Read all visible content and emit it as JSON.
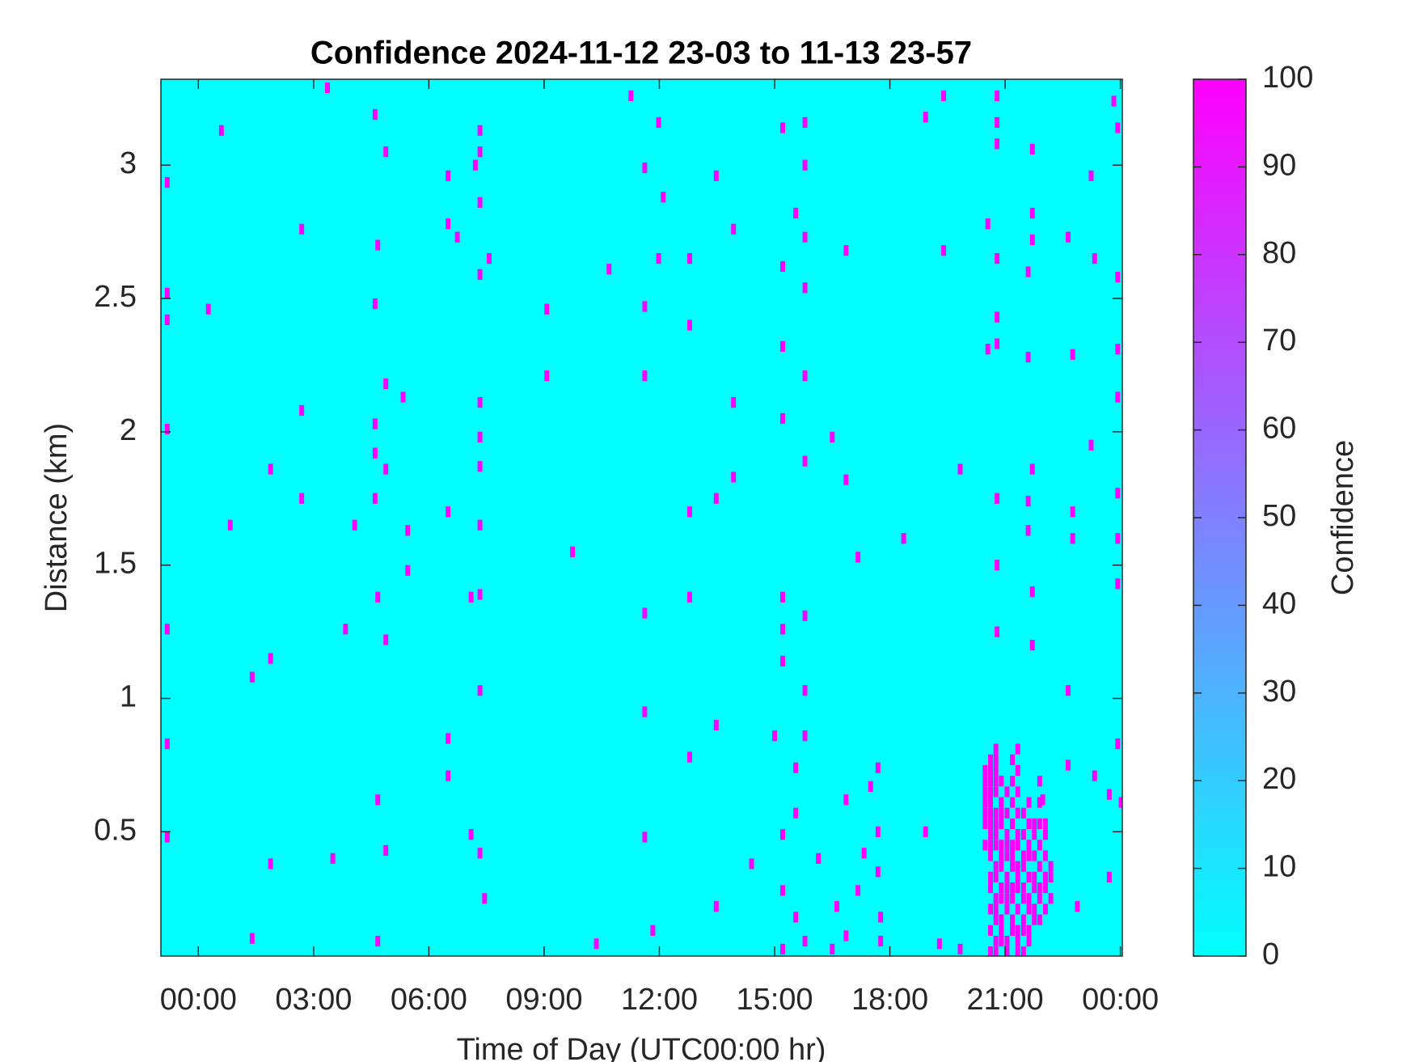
{
  "chart_data": {
    "type": "heatmap",
    "title": "Confidence 2024-11-12 23-03 to 11-13 23-57",
    "x_label": "Time of Day (UTC00:00 hr)",
    "y_label": "Distance (km)",
    "colorbar_label": "Confidence",
    "colormap": "cool",
    "fill_value": 0,
    "xlim": [
      -0.975,
      24.05
    ],
    "ylim": [
      0.034,
      3.322
    ],
    "clim": [
      0,
      100
    ],
    "xticks": [
      {
        "value": 0,
        "label": "00:00"
      },
      {
        "value": 3,
        "label": "03:00"
      },
      {
        "value": 6,
        "label": "06:00"
      },
      {
        "value": 9,
        "label": "09:00"
      },
      {
        "value": 12,
        "label": "12:00"
      },
      {
        "value": 15,
        "label": "15:00"
      },
      {
        "value": 18,
        "label": "18:00"
      },
      {
        "value": 21,
        "label": "21:00"
      },
      {
        "value": 24,
        "label": "00:00"
      }
    ],
    "yticks": [
      0.5,
      1,
      1.5,
      2,
      2.5,
      3
    ],
    "cticks": [
      0,
      10,
      20,
      30,
      40,
      50,
      60,
      70,
      80,
      90,
      100
    ],
    "cells": [
      [
        -0.81,
        2.935,
        100
      ],
      [
        -0.81,
        2.52,
        100
      ],
      [
        -0.81,
        2.42,
        100
      ],
      [
        -0.81,
        2.01,
        100
      ],
      [
        -0.81,
        1.26,
        100
      ],
      [
        -0.81,
        0.83,
        100
      ],
      [
        -0.81,
        0.48,
        100
      ],
      [
        0.26,
        2.46,
        100
      ],
      [
        0.6,
        3.13,
        100
      ],
      [
        0.83,
        1.65,
        100
      ],
      [
        1.4,
        1.08,
        100
      ],
      [
        1.4,
        0.1,
        100
      ],
      [
        1.88,
        1.86,
        100
      ],
      [
        1.88,
        1.15,
        100
      ],
      [
        1.88,
        0.38,
        100
      ],
      [
        2.69,
        2.76,
        100
      ],
      [
        2.69,
        2.08,
        100
      ],
      [
        2.69,
        1.75,
        100
      ],
      [
        3.36,
        3.29,
        100
      ],
      [
        3.5,
        0.4,
        100
      ],
      [
        3.83,
        1.26,
        100
      ],
      [
        4.07,
        1.65,
        100
      ],
      [
        4.6,
        3.19,
        100
      ],
      [
        4.6,
        2.48,
        100
      ],
      [
        4.6,
        2.03,
        100
      ],
      [
        4.6,
        1.92,
        100
      ],
      [
        4.6,
        1.75,
        100
      ],
      [
        4.67,
        2.7,
        100
      ],
      [
        4.67,
        1.38,
        100
      ],
      [
        4.67,
        0.62,
        100
      ],
      [
        4.67,
        0.09,
        100
      ],
      [
        4.88,
        3.05,
        100
      ],
      [
        4.88,
        2.18,
        100
      ],
      [
        4.88,
        1.86,
        100
      ],
      [
        4.88,
        1.22,
        100
      ],
      [
        4.88,
        0.43,
        100
      ],
      [
        5.33,
        2.13,
        100
      ],
      [
        5.45,
        1.63,
        100
      ],
      [
        5.45,
        1.48,
        100
      ],
      [
        6.5,
        2.96,
        100
      ],
      [
        6.5,
        2.78,
        100
      ],
      [
        6.5,
        1.7,
        100
      ],
      [
        6.5,
        0.85,
        100
      ],
      [
        6.5,
        0.71,
        100
      ],
      [
        6.74,
        2.73,
        100
      ],
      [
        7.1,
        1.38,
        100
      ],
      [
        7.1,
        0.49,
        100
      ],
      [
        7.21,
        3.0,
        100
      ],
      [
        7.33,
        3.13,
        100
      ],
      [
        7.33,
        3.05,
        100
      ],
      [
        7.33,
        2.86,
        100
      ],
      [
        7.33,
        2.59,
        100
      ],
      [
        7.33,
        2.11,
        100
      ],
      [
        7.33,
        1.98,
        100
      ],
      [
        7.33,
        1.87,
        100
      ],
      [
        7.33,
        1.65,
        100
      ],
      [
        7.33,
        1.39,
        100
      ],
      [
        7.33,
        1.03,
        100
      ],
      [
        7.33,
        0.42,
        100
      ],
      [
        7.45,
        0.25,
        100
      ],
      [
        7.57,
        2.65,
        100
      ],
      [
        9.07,
        2.46,
        100
      ],
      [
        9.07,
        2.21,
        100
      ],
      [
        9.74,
        1.55,
        100
      ],
      [
        10.36,
        0.08,
        100
      ],
      [
        10.69,
        2.61,
        100
      ],
      [
        11.26,
        3.26,
        100
      ],
      [
        11.62,
        2.99,
        100
      ],
      [
        11.62,
        2.47,
        100
      ],
      [
        11.62,
        2.21,
        100
      ],
      [
        11.62,
        1.32,
        100
      ],
      [
        11.62,
        0.95,
        100
      ],
      [
        11.62,
        0.48,
        100
      ],
      [
        11.83,
        0.13,
        100
      ],
      [
        11.98,
        3.16,
        100
      ],
      [
        11.98,
        2.65,
        100
      ],
      [
        12.1,
        2.88,
        100
      ],
      [
        12.79,
        2.65,
        100
      ],
      [
        12.79,
        2.4,
        100
      ],
      [
        12.79,
        1.7,
        100
      ],
      [
        12.79,
        1.38,
        100
      ],
      [
        12.79,
        0.78,
        100
      ],
      [
        13.48,
        2.96,
        100
      ],
      [
        13.48,
        1.75,
        100
      ],
      [
        13.48,
        0.9,
        100
      ],
      [
        13.48,
        0.22,
        100
      ],
      [
        13.93,
        2.76,
        100
      ],
      [
        13.93,
        2.11,
        100
      ],
      [
        13.93,
        1.83,
        100
      ],
      [
        14.4,
        0.38,
        100
      ],
      [
        15.0,
        0.86,
        100
      ],
      [
        15.21,
        3.14,
        100
      ],
      [
        15.21,
        2.62,
        100
      ],
      [
        15.21,
        2.32,
        100
      ],
      [
        15.21,
        2.05,
        100
      ],
      [
        15.21,
        1.38,
        100
      ],
      [
        15.21,
        1.26,
        100
      ],
      [
        15.21,
        1.14,
        100
      ],
      [
        15.21,
        0.49,
        100
      ],
      [
        15.21,
        0.28,
        100
      ],
      [
        15.21,
        0.06,
        100
      ],
      [
        15.55,
        2.82,
        100
      ],
      [
        15.55,
        0.74,
        100
      ],
      [
        15.55,
        0.57,
        100
      ],
      [
        15.55,
        0.18,
        100
      ],
      [
        15.79,
        3.16,
        100
      ],
      [
        15.79,
        3.0,
        100
      ],
      [
        15.79,
        2.73,
        100
      ],
      [
        15.79,
        2.54,
        100
      ],
      [
        15.79,
        2.21,
        100
      ],
      [
        15.79,
        1.89,
        100
      ],
      [
        15.79,
        1.31,
        100
      ],
      [
        15.79,
        1.03,
        100
      ],
      [
        15.79,
        0.86,
        100
      ],
      [
        15.79,
        0.09,
        100
      ],
      [
        16.14,
        0.4,
        100
      ],
      [
        16.5,
        1.98,
        100
      ],
      [
        16.5,
        0.06,
        100
      ],
      [
        16.62,
        0.22,
        100
      ],
      [
        16.86,
        2.68,
        100
      ],
      [
        16.86,
        1.82,
        100
      ],
      [
        16.86,
        0.62,
        100
      ],
      [
        16.86,
        0.11,
        100
      ],
      [
        17.17,
        1.53,
        100
      ],
      [
        17.17,
        0.28,
        100
      ],
      [
        17.33,
        0.42,
        100
      ],
      [
        17.5,
        0.67,
        100
      ],
      [
        17.69,
        0.74,
        100
      ],
      [
        17.69,
        0.5,
        100
      ],
      [
        17.69,
        0.35,
        100
      ],
      [
        17.76,
        0.18,
        100
      ],
      [
        17.76,
        0.09,
        100
      ],
      [
        18.36,
        1.6,
        100
      ],
      [
        18.93,
        3.18,
        100
      ],
      [
        18.93,
        0.5,
        100
      ],
      [
        19.29,
        0.08,
        100
      ],
      [
        19.4,
        3.26,
        100
      ],
      [
        19.4,
        2.68,
        100
      ],
      [
        19.83,
        1.86,
        100
      ],
      [
        19.83,
        0.06,
        100
      ],
      [
        20.55,
        2.78,
        100
      ],
      [
        20.55,
        2.31,
        100
      ],
      [
        20.79,
        3.26,
        100
      ],
      [
        20.79,
        3.16,
        100
      ],
      [
        20.79,
        3.08,
        100
      ],
      [
        20.79,
        2.65,
        100
      ],
      [
        20.79,
        2.43,
        100
      ],
      [
        20.79,
        2.33,
        100
      ],
      [
        20.79,
        1.75,
        100
      ],
      [
        20.79,
        1.5,
        100
      ],
      [
        20.79,
        1.25,
        100
      ],
      [
        21.6,
        2.28,
        100
      ],
      [
        21.6,
        2.6,
        100
      ],
      [
        21.6,
        1.74,
        100
      ],
      [
        21.6,
        1.63,
        100
      ],
      [
        21.71,
        3.06,
        100
      ],
      [
        21.71,
        2.82,
        100
      ],
      [
        21.71,
        2.72,
        100
      ],
      [
        21.71,
        1.86,
        100
      ],
      [
        21.71,
        1.4,
        100
      ],
      [
        21.71,
        1.2,
        100
      ],
      [
        21.98,
        0.62,
        100
      ],
      [
        22.64,
        2.73,
        100
      ],
      [
        22.64,
        1.03,
        100
      ],
      [
        22.64,
        0.75,
        100
      ],
      [
        22.76,
        2.29,
        100
      ],
      [
        22.76,
        1.7,
        100
      ],
      [
        22.76,
        1.6,
        100
      ],
      [
        22.88,
        0.22,
        100
      ],
      [
        23.24,
        2.96,
        100
      ],
      [
        23.24,
        1.95,
        100
      ],
      [
        23.33,
        2.65,
        100
      ],
      [
        23.33,
        0.71,
        100
      ],
      [
        23.71,
        0.64,
        100
      ],
      [
        23.71,
        0.33,
        100
      ],
      [
        23.83,
        3.24,
        100
      ],
      [
        23.93,
        3.14,
        100
      ],
      [
        23.93,
        2.58,
        100
      ],
      [
        23.93,
        2.31,
        100
      ],
      [
        23.93,
        2.13,
        100
      ],
      [
        23.93,
        1.77,
        100
      ],
      [
        23.93,
        1.6,
        100
      ],
      [
        23.93,
        1.43,
        100
      ],
      [
        23.93,
        0.83,
        100
      ],
      [
        24.02,
        0.61,
        100
      ],
      [
        20.48,
        0.45,
        100
      ],
      [
        20.48,
        0.53,
        100
      ],
      [
        20.48,
        0.57,
        100
      ],
      [
        20.48,
        0.61,
        100
      ],
      [
        20.48,
        0.65,
        100
      ],
      [
        20.48,
        0.69,
        100
      ],
      [
        20.48,
        0.73,
        100
      ],
      [
        20.62,
        0.05,
        100
      ],
      [
        20.62,
        0.13,
        100
      ],
      [
        20.62,
        0.21,
        100
      ],
      [
        20.62,
        0.29,
        100
      ],
      [
        20.62,
        0.33,
        100
      ],
      [
        20.62,
        0.41,
        100
      ],
      [
        20.62,
        0.45,
        100
      ],
      [
        20.62,
        0.49,
        100
      ],
      [
        20.62,
        0.53,
        100
      ],
      [
        20.62,
        0.57,
        100
      ],
      [
        20.62,
        0.61,
        100
      ],
      [
        20.62,
        0.65,
        100
      ],
      [
        20.62,
        0.69,
        100
      ],
      [
        20.62,
        0.73,
        100
      ],
      [
        20.62,
        0.77,
        100
      ],
      [
        20.76,
        0.05,
        100
      ],
      [
        20.76,
        0.09,
        100
      ],
      [
        20.76,
        0.17,
        100
      ],
      [
        20.76,
        0.21,
        100
      ],
      [
        20.76,
        0.25,
        100
      ],
      [
        20.76,
        0.33,
        100
      ],
      [
        20.76,
        0.37,
        100
      ],
      [
        20.76,
        0.45,
        100
      ],
      [
        20.76,
        0.49,
        100
      ],
      [
        20.76,
        0.53,
        100
      ],
      [
        20.76,
        0.57,
        100
      ],
      [
        20.76,
        0.65,
        100
      ],
      [
        20.76,
        0.69,
        100
      ],
      [
        20.76,
        0.73,
        100
      ],
      [
        20.76,
        0.77,
        100
      ],
      [
        20.76,
        0.81,
        100
      ],
      [
        20.9,
        0.09,
        100
      ],
      [
        20.9,
        0.13,
        100
      ],
      [
        20.9,
        0.17,
        100
      ],
      [
        20.9,
        0.25,
        100
      ],
      [
        20.9,
        0.29,
        100
      ],
      [
        20.9,
        0.37,
        100
      ],
      [
        20.9,
        0.41,
        100
      ],
      [
        20.9,
        0.45,
        100
      ],
      [
        20.9,
        0.53,
        100
      ],
      [
        20.9,
        0.57,
        100
      ],
      [
        20.9,
        0.61,
        100
      ],
      [
        20.9,
        0.69,
        100
      ],
      [
        21.05,
        0.05,
        100
      ],
      [
        21.05,
        0.09,
        100
      ],
      [
        21.05,
        0.21,
        100
      ],
      [
        21.05,
        0.25,
        100
      ],
      [
        21.05,
        0.29,
        100
      ],
      [
        21.05,
        0.33,
        100
      ],
      [
        21.05,
        0.41,
        100
      ],
      [
        21.05,
        0.45,
        100
      ],
      [
        21.05,
        0.49,
        100
      ],
      [
        21.05,
        0.57,
        100
      ],
      [
        21.05,
        0.65,
        100
      ],
      [
        21.19,
        0.13,
        100
      ],
      [
        21.19,
        0.17,
        100
      ],
      [
        21.19,
        0.25,
        100
      ],
      [
        21.19,
        0.29,
        100
      ],
      [
        21.19,
        0.37,
        100
      ],
      [
        21.19,
        0.41,
        100
      ],
      [
        21.19,
        0.45,
        100
      ],
      [
        21.19,
        0.53,
        100
      ],
      [
        21.19,
        0.61,
        100
      ],
      [
        21.19,
        0.69,
        100
      ],
      [
        21.19,
        0.77,
        100
      ],
      [
        21.33,
        0.05,
        100
      ],
      [
        21.33,
        0.09,
        100
      ],
      [
        21.33,
        0.13,
        100
      ],
      [
        21.33,
        0.21,
        100
      ],
      [
        21.33,
        0.29,
        100
      ],
      [
        21.33,
        0.33,
        100
      ],
      [
        21.33,
        0.37,
        100
      ],
      [
        21.33,
        0.45,
        100
      ],
      [
        21.33,
        0.49,
        100
      ],
      [
        21.33,
        0.57,
        100
      ],
      [
        21.33,
        0.65,
        100
      ],
      [
        21.33,
        0.73,
        100
      ],
      [
        21.33,
        0.81,
        100
      ],
      [
        21.48,
        0.05,
        100
      ],
      [
        21.48,
        0.13,
        100
      ],
      [
        21.48,
        0.17,
        100
      ],
      [
        21.48,
        0.25,
        100
      ],
      [
        21.48,
        0.29,
        100
      ],
      [
        21.48,
        0.37,
        100
      ],
      [
        21.48,
        0.41,
        100
      ],
      [
        21.48,
        0.49,
        100
      ],
      [
        21.48,
        0.57,
        100
      ],
      [
        21.62,
        0.09,
        100
      ],
      [
        21.62,
        0.13,
        100
      ],
      [
        21.62,
        0.21,
        100
      ],
      [
        21.62,
        0.25,
        100
      ],
      [
        21.62,
        0.33,
        100
      ],
      [
        21.62,
        0.41,
        100
      ],
      [
        21.62,
        0.45,
        100
      ],
      [
        21.62,
        0.53,
        100
      ],
      [
        21.62,
        0.61,
        100
      ],
      [
        21.76,
        0.17,
        100
      ],
      [
        21.76,
        0.21,
        100
      ],
      [
        21.76,
        0.29,
        100
      ],
      [
        21.76,
        0.33,
        100
      ],
      [
        21.76,
        0.41,
        100
      ],
      [
        21.76,
        0.49,
        100
      ],
      [
        21.76,
        0.53,
        100
      ],
      [
        21.9,
        0.17,
        100
      ],
      [
        21.9,
        0.25,
        100
      ],
      [
        21.9,
        0.29,
        100
      ],
      [
        21.9,
        0.37,
        100
      ],
      [
        21.9,
        0.45,
        100
      ],
      [
        21.9,
        0.53,
        100
      ],
      [
        21.9,
        0.61,
        100
      ],
      [
        21.9,
        0.69,
        100
      ],
      [
        22.05,
        0.21,
        100
      ],
      [
        22.05,
        0.29,
        100
      ],
      [
        22.05,
        0.33,
        100
      ],
      [
        22.05,
        0.41,
        100
      ],
      [
        22.05,
        0.49,
        100
      ],
      [
        22.05,
        0.53,
        100
      ],
      [
        22.19,
        0.25,
        100
      ],
      [
        22.19,
        0.33,
        100
      ],
      [
        22.19,
        0.37,
        100
      ]
    ]
  }
}
